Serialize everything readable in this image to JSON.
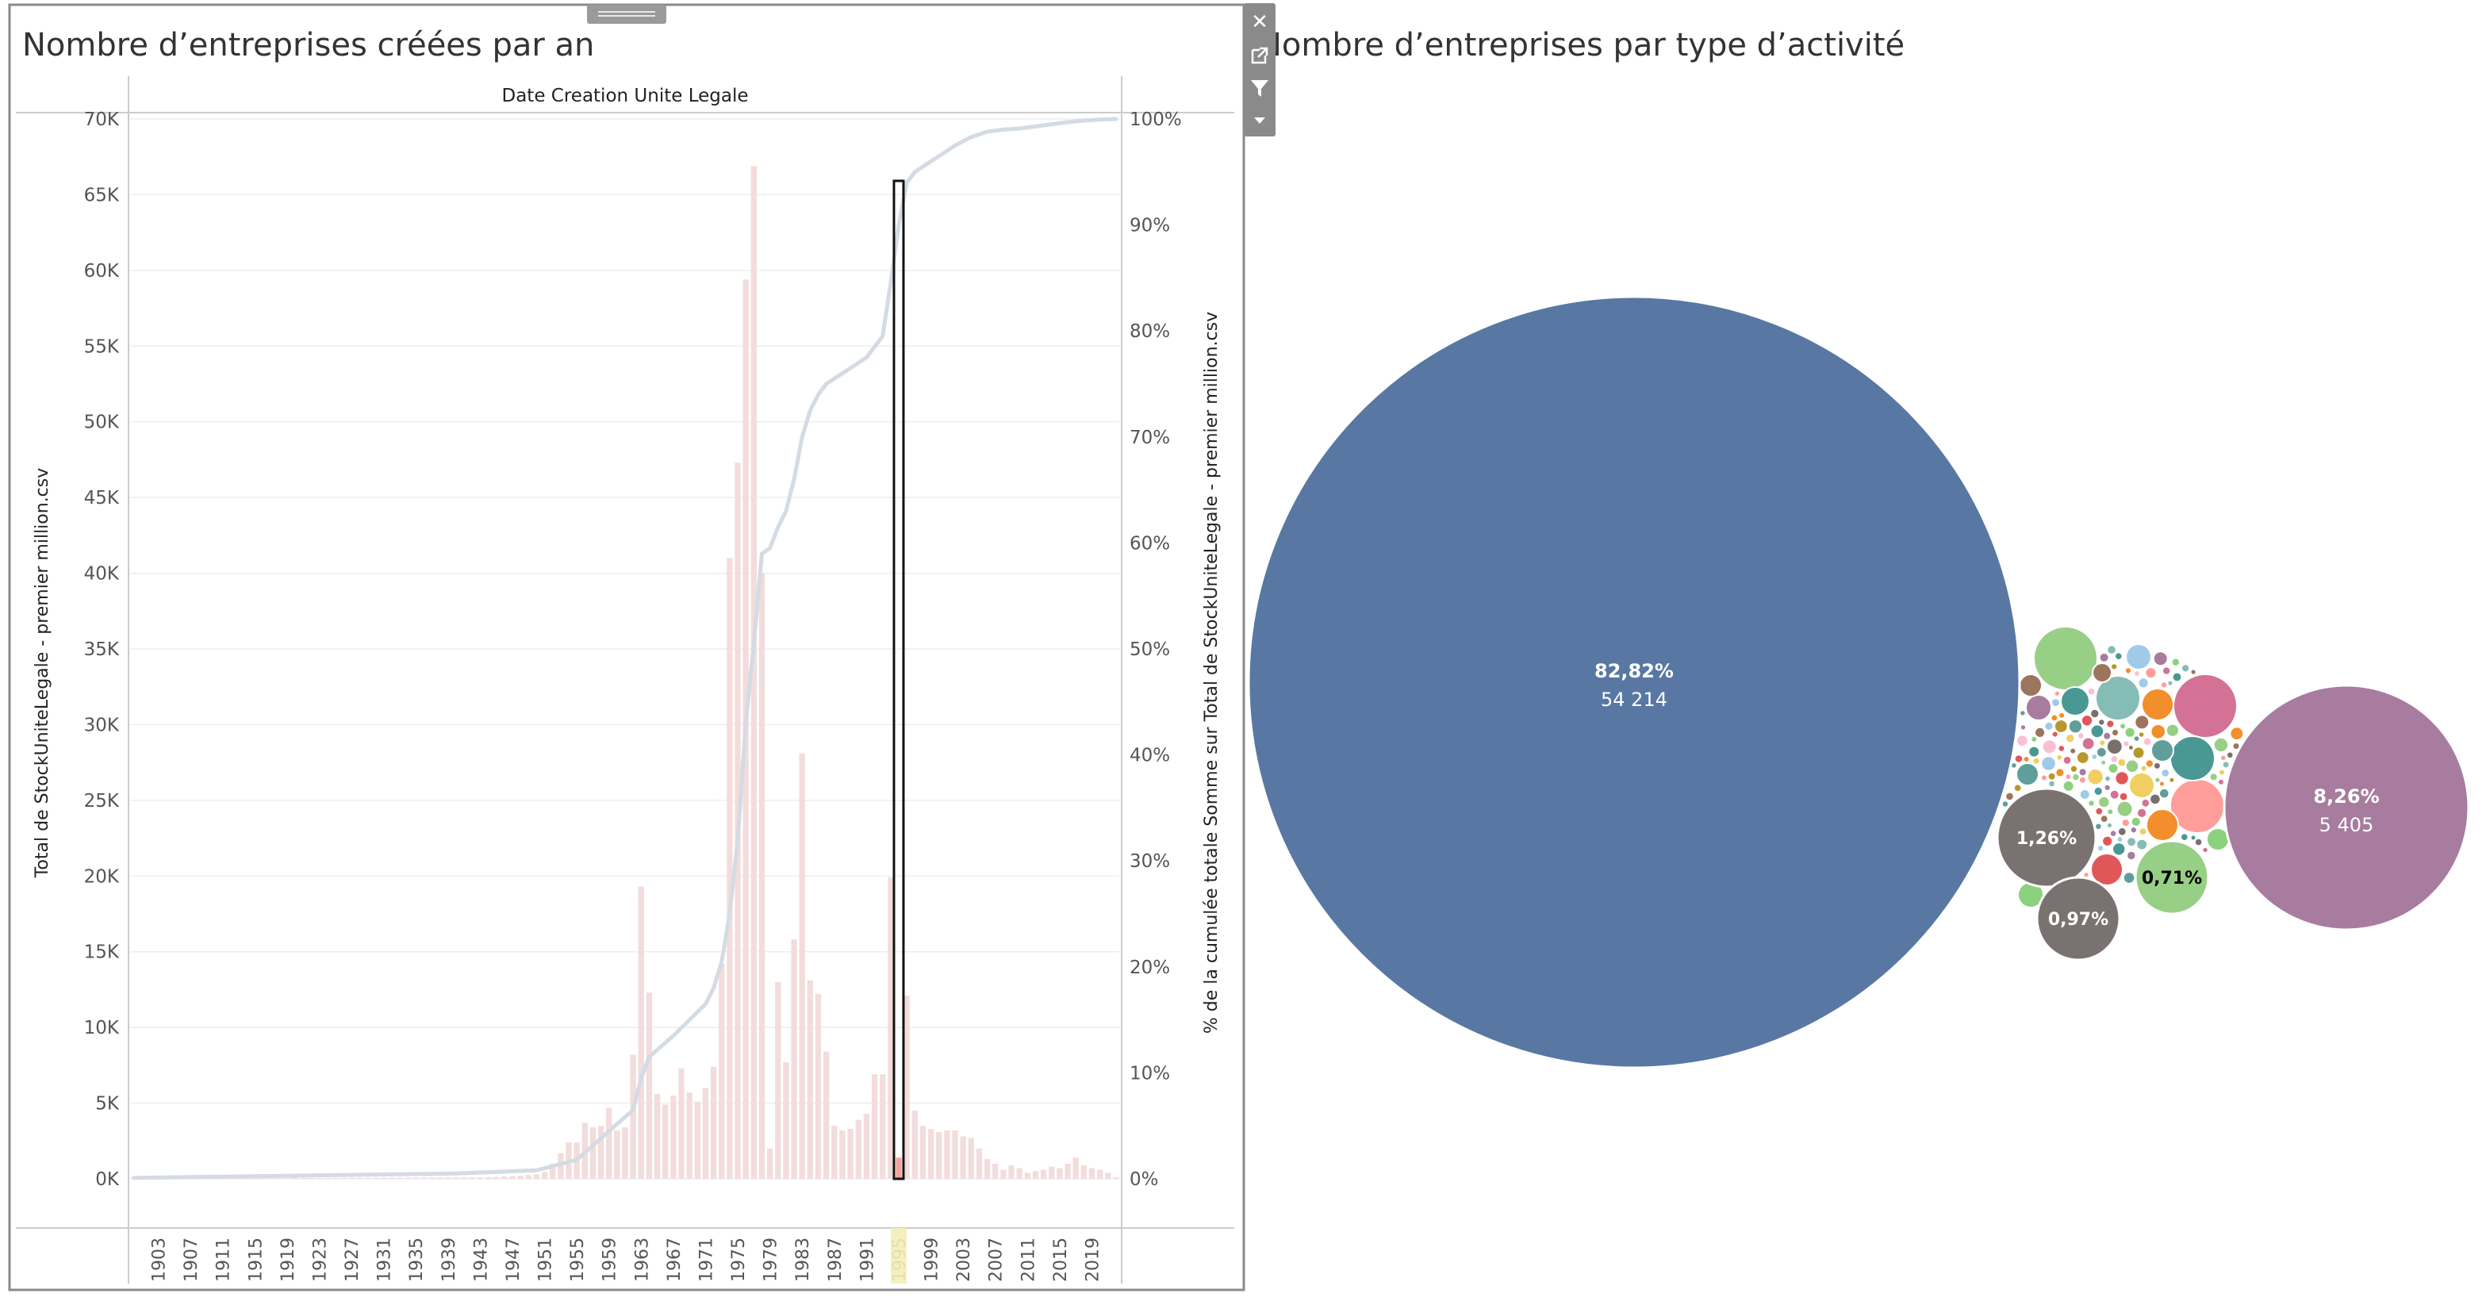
{
  "left_panel": {
    "title": "Nombre d’entreprises créées par an",
    "header": "Date Creation Unite Legale",
    "y_left_label": "Total de StockUniteLegale - premier million.csv",
    "y_right_label": "% de la cumulée totale Somme sur Total de StockUniteLegale - premier million.csv"
  },
  "right_panel": {
    "title": "Nombre d’entreprises par type d’activité"
  },
  "toolbar": {
    "close_icon": "close-icon",
    "popout_icon": "external-link-icon",
    "filter_icon": "filter-icon",
    "menu_icon": "dropdown-icon"
  },
  "colors": {
    "bar": "#f3dcdc",
    "bar_selected": "#f2a39d",
    "line": "#d4dbe3",
    "grid": "#eeeeee",
    "bubble_main": "#5878a3",
    "bubble_purple": "#a77c9f",
    "bubble_gray": "#7a7270",
    "bubble_green": "#98cf86"
  },
  "chart_data": [
    {
      "type": "bar",
      "title": "Nombre d’entreprises créées par an",
      "xlabel": "Date Creation Unite Legale",
      "ylabel": "Total de StockUniteLegale - premier million.csv",
      "y2label": "% de la cumulée totale Somme sur Total de StockUniteLegale - premier million.csv",
      "x_range": [
        1900,
        2022
      ],
      "ylim": [
        0,
        70000
      ],
      "y2lim": [
        0,
        100
      ],
      "yticks": [
        "0K",
        "5K",
        "10K",
        "15K",
        "20K",
        "25K",
        "30K",
        "35K",
        "40K",
        "45K",
        "50K",
        "55K",
        "60K",
        "65K",
        "70K"
      ],
      "y2ticks": [
        "0%",
        "10%",
        "20%",
        "30%",
        "40%",
        "50%",
        "60%",
        "70%",
        "80%",
        "90%",
        "100%"
      ],
      "xticks": [
        "1903",
        "1907",
        "1911",
        "1915",
        "1919",
        "1923",
        "1927",
        "1931",
        "1935",
        "1939",
        "1943",
        "1947",
        "1951",
        "1955",
        "1959",
        "1963",
        "1967",
        "1971",
        "1975",
        "1979",
        "1983",
        "1987",
        "1991",
        "1995",
        "1999",
        "2003",
        "2007",
        "2011",
        "2015",
        "2019"
      ],
      "highlighted_year": 1995,
      "series": [
        {
          "name": "Total de StockUniteLegale - premier million.csv",
          "type": "bar",
          "points": [
            [
              1900,
              100
            ],
            [
              1901,
              50
            ],
            [
              1902,
              50
            ],
            [
              1903,
              50
            ],
            [
              1904,
              50
            ],
            [
              1905,
              50
            ],
            [
              1906,
              50
            ],
            [
              1907,
              50
            ],
            [
              1908,
              50
            ],
            [
              1909,
              50
            ],
            [
              1910,
              50
            ],
            [
              1911,
              50
            ],
            [
              1912,
              50
            ],
            [
              1913,
              50
            ],
            [
              1914,
              50
            ],
            [
              1915,
              50
            ],
            [
              1916,
              50
            ],
            [
              1917,
              50
            ],
            [
              1918,
              50
            ],
            [
              1919,
              60
            ],
            [
              1920,
              80
            ],
            [
              1921,
              60
            ],
            [
              1922,
              60
            ],
            [
              1923,
              60
            ],
            [
              1924,
              60
            ],
            [
              1925,
              70
            ],
            [
              1926,
              70
            ],
            [
              1927,
              70
            ],
            [
              1928,
              70
            ],
            [
              1929,
              70
            ],
            [
              1930,
              80
            ],
            [
              1931,
              80
            ],
            [
              1932,
              80
            ],
            [
              1933,
              80
            ],
            [
              1934,
              80
            ],
            [
              1935,
              90
            ],
            [
              1936,
              90
            ],
            [
              1937,
              90
            ],
            [
              1938,
              90
            ],
            [
              1939,
              90
            ],
            [
              1940,
              90
            ],
            [
              1941,
              90
            ],
            [
              1942,
              100
            ],
            [
              1943,
              100
            ],
            [
              1944,
              110
            ],
            [
              1945,
              120
            ],
            [
              1946,
              150
            ],
            [
              1947,
              180
            ],
            [
              1948,
              200
            ],
            [
              1949,
              250
            ],
            [
              1950,
              300
            ],
            [
              1951,
              450
            ],
            [
              1952,
              1000
            ],
            [
              1953,
              1700
            ],
            [
              1954,
              2400
            ],
            [
              1955,
              2400
            ],
            [
              1956,
              3700
            ],
            [
              1957,
              3400
            ],
            [
              1958,
              3500
            ],
            [
              1959,
              4700
            ],
            [
              1960,
              3200
            ],
            [
              1961,
              3400
            ],
            [
              1962,
              8200
            ],
            [
              1963,
              19300
            ],
            [
              1964,
              12300
            ],
            [
              1965,
              5600
            ],
            [
              1966,
              4900
            ],
            [
              1967,
              5500
            ],
            [
              1968,
              7300
            ],
            [
              1969,
              5700
            ],
            [
              1970,
              5100
            ],
            [
              1971,
              6000
            ],
            [
              1972,
              7400
            ],
            [
              1973,
              14200
            ],
            [
              1974,
              41000
            ],
            [
              1975,
              47300
            ],
            [
              1976,
              59400
            ],
            [
              1977,
              66900
            ],
            [
              1978,
              40000
            ],
            [
              1979,
              2000
            ],
            [
              1980,
              13000
            ],
            [
              1981,
              7700
            ],
            [
              1982,
              15800
            ],
            [
              1983,
              28100
            ],
            [
              1984,
              13100
            ],
            [
              1985,
              12200
            ],
            [
              1986,
              8400
            ],
            [
              1987,
              3500
            ],
            [
              1988,
              3200
            ],
            [
              1989,
              3300
            ],
            [
              1990,
              3900
            ],
            [
              1991,
              4300
            ],
            [
              1992,
              6900
            ],
            [
              1993,
              6900
            ],
            [
              1994,
              19900
            ],
            [
              1995,
              1400
            ],
            [
              1996,
              12100
            ],
            [
              1997,
              4500
            ],
            [
              1998,
              3500
            ],
            [
              1999,
              3300
            ],
            [
              2000,
              3100
            ],
            [
              2001,
              3200
            ],
            [
              2002,
              3200
            ],
            [
              2003,
              2800
            ],
            [
              2004,
              2700
            ],
            [
              2005,
              2000
            ],
            [
              2006,
              1300
            ],
            [
              2007,
              1000
            ],
            [
              2008,
              600
            ],
            [
              2009,
              900
            ],
            [
              2010,
              700
            ],
            [
              2011,
              400
            ],
            [
              2012,
              500
            ],
            [
              2013,
              600
            ],
            [
              2014,
              800
            ],
            [
              2015,
              700
            ],
            [
              2016,
              1000
            ],
            [
              2017,
              1400
            ],
            [
              2018,
              900
            ],
            [
              2019,
              700
            ],
            [
              2020,
              600
            ],
            [
              2021,
              400
            ],
            [
              2022,
              100
            ]
          ]
        },
        {
          "name": "% de la cumulée totale",
          "type": "line",
          "points": [
            [
              1900,
              0.1
            ],
            [
              1920,
              0.3
            ],
            [
              1940,
              0.5
            ],
            [
              1950,
              0.8
            ],
            [
              1955,
              1.8
            ],
            [
              1959,
              4.5
            ],
            [
              1962,
              6.5
            ],
            [
              1963,
              9.5
            ],
            [
              1964,
              11.5
            ],
            [
              1967,
              13.5
            ],
            [
              1969,
              15
            ],
            [
              1971,
              16.5
            ],
            [
              1972,
              18
            ],
            [
              1973,
              20.5
            ],
            [
              1974,
              25
            ],
            [
              1975,
              32
            ],
            [
              1976,
              43
            ],
            [
              1977,
              50.5
            ],
            [
              1978,
              59
            ],
            [
              1979,
              59.5
            ],
            [
              1980,
              61.5
            ],
            [
              1981,
              63
            ],
            [
              1982,
              66
            ],
            [
              1983,
              70
            ],
            [
              1984,
              72.5
            ],
            [
              1985,
              74
            ],
            [
              1986,
              75
            ],
            [
              1987,
              75.5
            ],
            [
              1988,
              76
            ],
            [
              1989,
              76.5
            ],
            [
              1990,
              77
            ],
            [
              1991,
              77.5
            ],
            [
              1992,
              78.5
            ],
            [
              1993,
              79.5
            ],
            [
              1994,
              84.5
            ],
            [
              1995,
              90
            ],
            [
              1996,
              94
            ],
            [
              1997,
              95
            ],
            [
              1998,
              95.5
            ],
            [
              1999,
              96
            ],
            [
              2000,
              96.5
            ],
            [
              2002,
              97.5
            ],
            [
              2004,
              98.3
            ],
            [
              2006,
              98.8
            ],
            [
              2008,
              99
            ],
            [
              2010,
              99.1
            ],
            [
              2012,
              99.3
            ],
            [
              2014,
              99.5
            ],
            [
              2016,
              99.7
            ],
            [
              2018,
              99.85
            ],
            [
              2020,
              99.95
            ],
            [
              2022,
              100
            ]
          ]
        }
      ]
    },
    {
      "type": "bubble",
      "title": "Nombre d’entreprises par type d’activité",
      "bubbles": [
        {
          "label": "82,82%",
          "value": 54214,
          "value_text": "54 214",
          "color": "#5878a3",
          "text_color": "#ffffff"
        },
        {
          "label": "8,26%",
          "value": 5405,
          "value_text": "5 405",
          "color": "#a77c9f",
          "text_color": "#ffffff"
        },
        {
          "label": "1,26%",
          "value": 825,
          "value_text": "",
          "color": "#7a7270",
          "text_color": "#ffffff"
        },
        {
          "label": "0,97%",
          "value": 635,
          "value_text": "",
          "color": "#7a7270",
          "text_color": "#ffffff"
        },
        {
          "label": "0,71%",
          "value": 465,
          "value_text": "",
          "color": "#98cf86",
          "text_color": "#000000"
        }
      ],
      "small_bubble_palette": [
        "#98cf86",
        "#f28e2b",
        "#5f9e9b",
        "#e15759",
        "#a77c9f",
        "#9c755f",
        "#8cd17d",
        "#f1ce63",
        "#a0cbe8",
        "#ff9d9a",
        "#b6992d",
        "#86bcb6",
        "#d37295",
        "#79706e",
        "#499894",
        "#fabfd2"
      ]
    }
  ]
}
